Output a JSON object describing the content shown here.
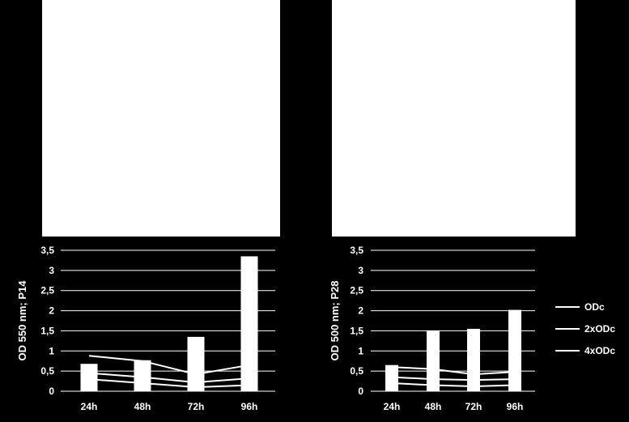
{
  "chart_data": [
    {
      "type": "bar",
      "ylabel": "OD 550 nm;  P14",
      "categories": [
        "24h",
        "48h",
        "72h",
        "96h"
      ],
      "yticks": [
        "0",
        "0,5",
        "1",
        "1,5",
        "2",
        "2,5",
        "3",
        "3,5"
      ],
      "ylim": [
        0,
        3.5
      ],
      "grid": true,
      "values": [
        0.68,
        0.77,
        1.35,
        3.35
      ],
      "series": [
        {
          "name": "ODc",
          "values": [
            0.88,
            0.75,
            0.42,
            0.65
          ]
        },
        {
          "name": "2xODc",
          "values": [
            0.45,
            0.35,
            0.22,
            0.32
          ]
        },
        {
          "name": "4xODc",
          "values": [
            0.3,
            0.2,
            0.1,
            0.15
          ]
        }
      ]
    },
    {
      "type": "bar",
      "ylabel": "OD 500 nm; P28",
      "categories": [
        "24h",
        "48h",
        "72h",
        "96h"
      ],
      "yticks": [
        "0",
        "0,5",
        "1",
        "1,5",
        "2",
        "2,5",
        "3",
        "3,5"
      ],
      "ylim": [
        0,
        3.5
      ],
      "grid": true,
      "values": [
        0.65,
        1.5,
        1.55,
        2.02
      ],
      "series": [
        {
          "name": "ODc",
          "values": [
            0.6,
            0.55,
            0.42,
            0.48
          ]
        },
        {
          "name": "2xODc",
          "values": [
            0.35,
            0.3,
            0.28,
            0.3
          ]
        },
        {
          "name": "4xODc",
          "values": [
            0.2,
            0.15,
            0.12,
            0.15
          ]
        }
      ]
    }
  ],
  "legend": {
    "items": [
      "ODc",
      "2xODc",
      "4xODc"
    ],
    "placement": "right"
  },
  "colors": {
    "background": "#000000",
    "bars": "#ffffff",
    "lines": "#ffffff",
    "text": "#ffffff",
    "image_panels": "#ffffff"
  }
}
